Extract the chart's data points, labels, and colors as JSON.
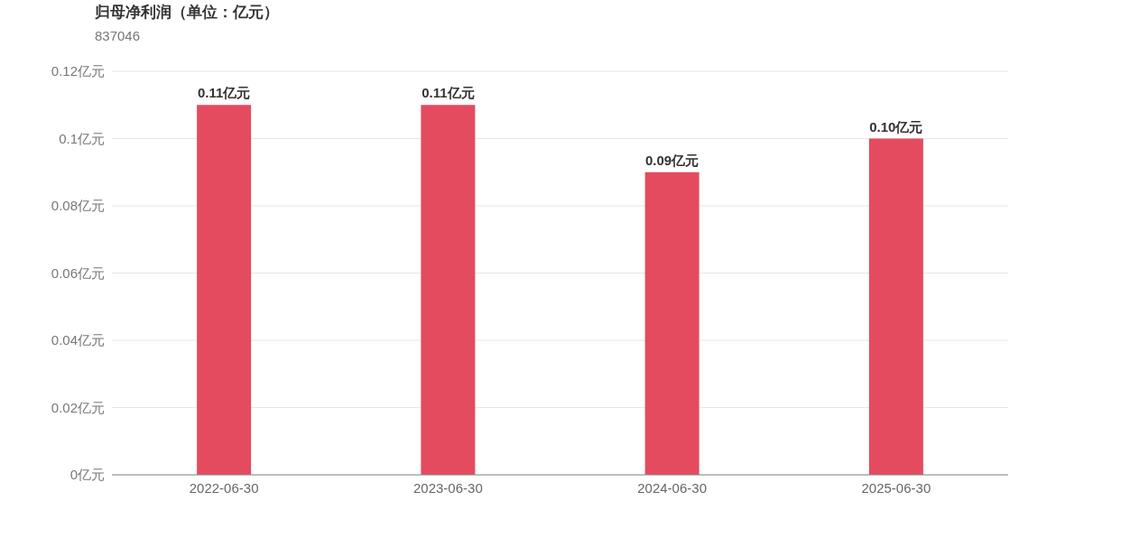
{
  "chart_data": {
    "type": "bar",
    "title": "归母净利润（单位：亿元）",
    "subtitle": "837046",
    "categories": [
      "2022-06-30",
      "2023-06-30",
      "2024-06-30",
      "2025-06-30"
    ],
    "values": [
      0.11,
      0.11,
      0.09,
      0.1
    ],
    "value_labels": [
      "0.11亿元",
      "0.11亿元",
      "0.09亿元",
      "0.10亿元"
    ],
    "color": "#e54b5e",
    "ylim": [
      0,
      0.12
    ],
    "yticks": [
      {
        "value": 0,
        "label": "0亿元"
      },
      {
        "value": 0.02,
        "label": "0.02亿元"
      },
      {
        "value": 0.04,
        "label": "0.04亿元"
      },
      {
        "value": 0.06,
        "label": "0.06亿元"
      },
      {
        "value": 0.08,
        "label": "0.08亿元"
      },
      {
        "value": 0.1,
        "label": "0.1亿元"
      },
      {
        "value": 0.12,
        "label": "0.12亿元"
      }
    ],
    "grid": "y"
  }
}
